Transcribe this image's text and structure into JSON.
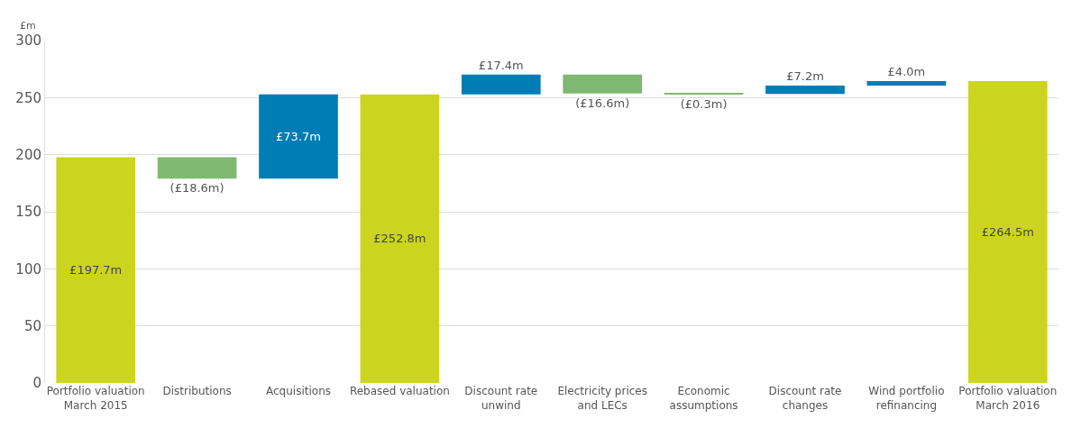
{
  "chart_data": {
    "type": "bar",
    "ylabel": "£m",
    "categories": [
      "Portfolio valuation\nMarch 2015",
      "Distributions",
      "Acquisitions",
      "Rebased valuation",
      "Discount rate\nunwind",
      "Electricity prices\nand LECs",
      "Economic\nassumptions",
      "Discount rate\nchanges",
      "Wind portfolio\nrefinancing",
      "Portfolio valuation\nMarch 2016"
    ],
    "values": [
      197.7,
      -18.6,
      73.7,
      252.8,
      17.4,
      -16.6,
      -0.3,
      7.2,
      4.0,
      264.5
    ],
    "base": [
      0,
      197.7,
      179.1,
      0,
      252.8,
      270.2,
      253.6,
      253.3,
      260.5,
      0
    ],
    "colors": [
      "#cbd51f",
      "#7fb871",
      "#007db5",
      "#cbd51f",
      "#007db5",
      "#7fb871",
      "#7fb871",
      "#007db5",
      "#007db5",
      "#cbd51f"
    ],
    "value_labels": [
      "£197.7m",
      "(£18.6m)",
      "£73.7m",
      "£252.8m",
      "£17.4m",
      "(£16.6m)",
      "(£0.3m)",
      "£7.2m",
      "£4.0m",
      "£264.5m"
    ],
    "ylim": [
      0,
      300
    ],
    "yticks": [
      0,
      50,
      100,
      150,
      200,
      250,
      300
    ],
    "grid": "y"
  }
}
